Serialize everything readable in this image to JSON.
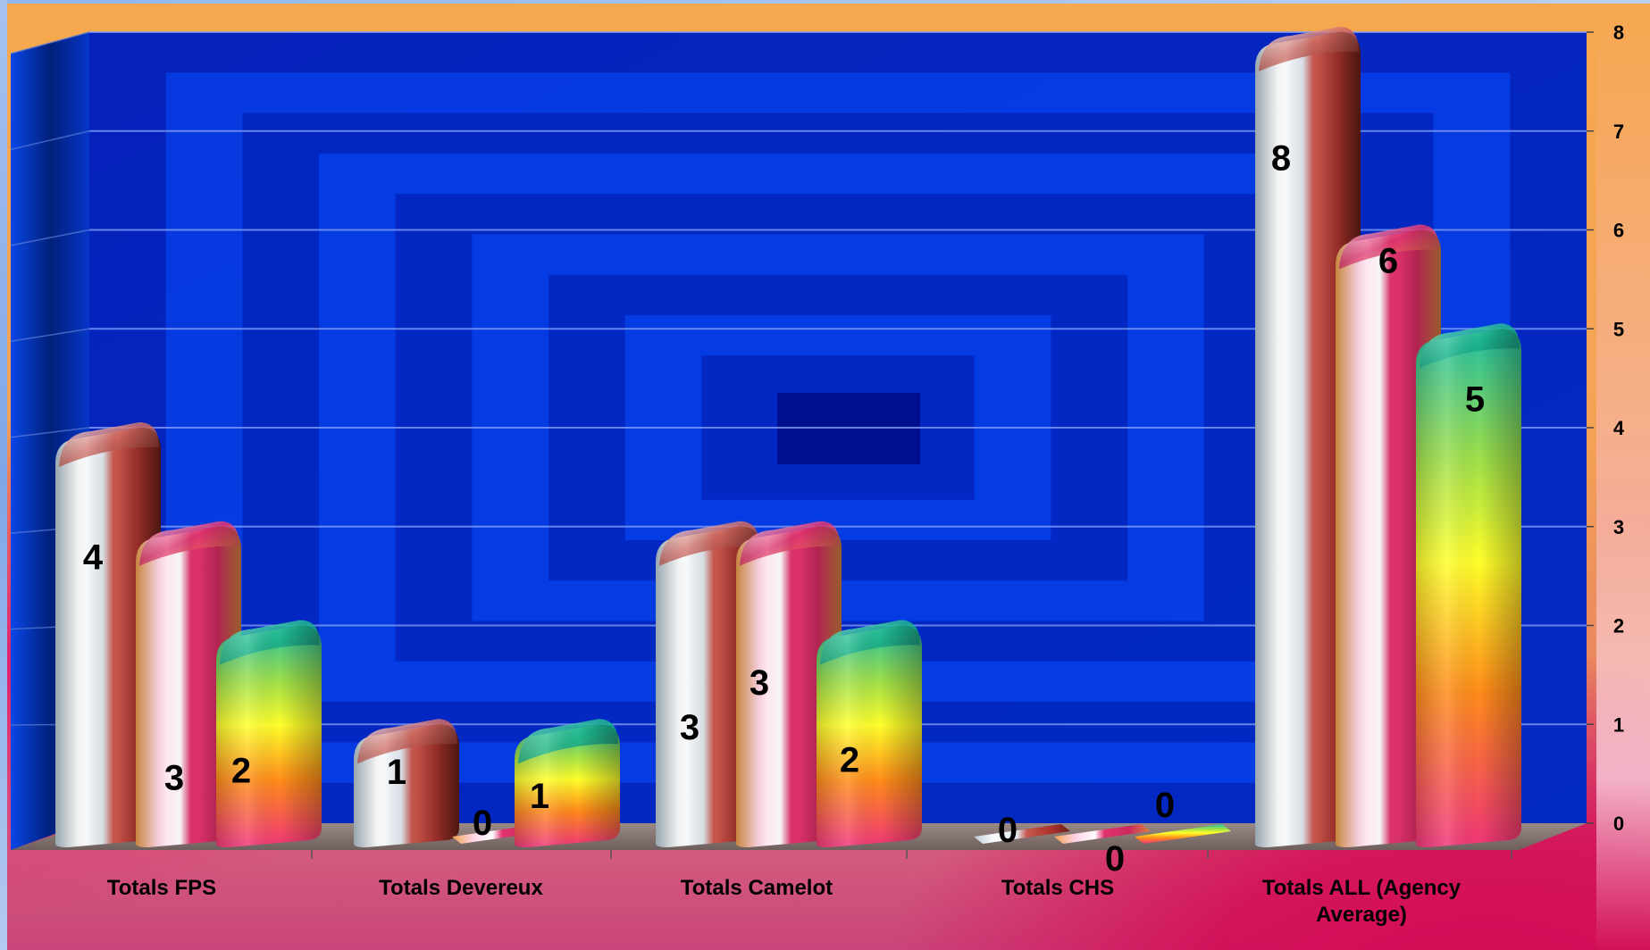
{
  "chart_data": {
    "type": "bar",
    "title": "",
    "xlabel": "",
    "ylabel": "",
    "categories": [
      "Totals FPS",
      "Totals Devereux",
      "Totals Camelot",
      "Totals CHS",
      "Totals ALL (Agency Average)"
    ],
    "category_lines": [
      [
        "Totals FPS"
      ],
      [
        "Totals Devereux"
      ],
      [
        "Totals Camelot"
      ],
      [
        "Totals CHS"
      ],
      [
        "Totals ALL (Agency",
        "Average)"
      ]
    ],
    "series": [
      {
        "values": [
          4,
          1,
          3,
          0,
          8
        ],
        "color": "#b83a34"
      },
      {
        "values": [
          3,
          0,
          3,
          0,
          6
        ],
        "color": "#d21f5c"
      },
      {
        "values": [
          2,
          1,
          2,
          0,
          5
        ],
        "color": "#2fb89a"
      }
    ],
    "ylim": [
      0,
      8
    ],
    "yticks": [
      0,
      1,
      2,
      3,
      4,
      5,
      6,
      7,
      8
    ],
    "y_axis_side": "right",
    "grid": true,
    "data_labels": true,
    "style": "3d-cylinders",
    "wall_color": "#0a3fe0"
  }
}
